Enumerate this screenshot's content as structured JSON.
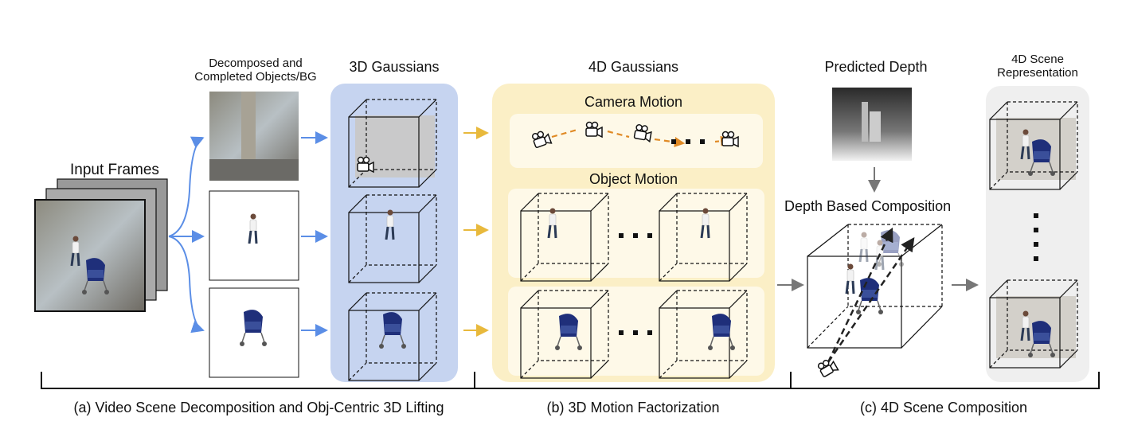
{
  "input": {
    "label": "Input Frames"
  },
  "decompose": {
    "label_line1": "Decomposed and",
    "label_line2": "Completed Objects/BG"
  },
  "gaussians3d": {
    "title": "3D Gaussians"
  },
  "gaussians4d": {
    "title": "4D Gaussians",
    "camera_motion": "Camera Motion",
    "object_motion": "Object Motion"
  },
  "depth": {
    "title": "Predicted Depth",
    "composition": "Depth Based Composition"
  },
  "scene": {
    "title_line1": "4D Scene",
    "title_line2": "Representation"
  },
  "stages": {
    "a": "(a) Video Scene Decomposition and Obj-Centric 3D Lifting",
    "b": "(b) 3D Motion Factorization",
    "c": "(c) 4D Scene Composition"
  },
  "colors": {
    "blue_panel": "#c6d4f0",
    "yellow_panel": "#fbefc6",
    "gray_panel": "#efefef",
    "blue_arrow": "#5b8ee6",
    "yellow_arrow": "#e8b93c",
    "orange_dash": "#e08a25"
  },
  "icons": [
    "camera-icon",
    "ellipsis-icon",
    "arrow-icon"
  ]
}
